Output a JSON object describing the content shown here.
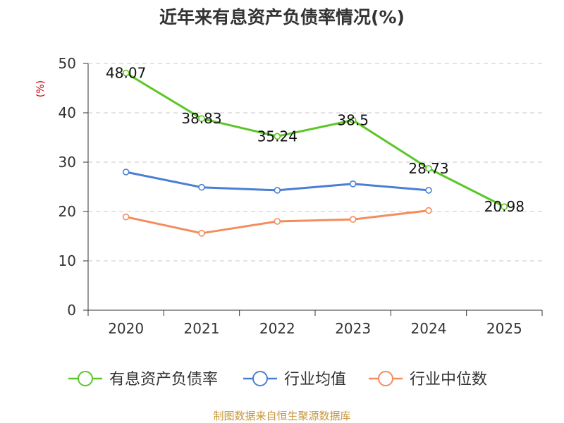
{
  "chart_data": {
    "type": "line",
    "title": "近年来有息资产负债率情况(%)",
    "ylabel": "(%)",
    "xlabel": "",
    "categories": [
      "2020",
      "2021",
      "2022",
      "2023",
      "2024",
      "2025"
    ],
    "ylim": [
      0,
      50
    ],
    "yticks": [
      0,
      10,
      20,
      30,
      40,
      50
    ],
    "grid": true,
    "legend_position": "bottom",
    "series": [
      {
        "name": "有息资产负债率",
        "color": "#5cc626",
        "values": [
          48.07,
          38.83,
          35.24,
          38.5,
          28.73,
          20.98
        ],
        "labels": [
          "48.07",
          "38.83",
          "35.24",
          "38.5",
          "28.73",
          "20.98"
        ],
        "show_labels": true
      },
      {
        "name": "行业均值",
        "color": "#4a7fd4",
        "values": [
          28.0,
          24.9,
          24.3,
          25.6,
          24.3,
          null
        ],
        "show_labels": false
      },
      {
        "name": "行业中位数",
        "color": "#f48c5c",
        "values": [
          18.9,
          15.6,
          18.0,
          18.4,
          20.2,
          null
        ],
        "show_labels": false
      }
    ],
    "source": "制图数据来自恒生聚源数据库"
  }
}
